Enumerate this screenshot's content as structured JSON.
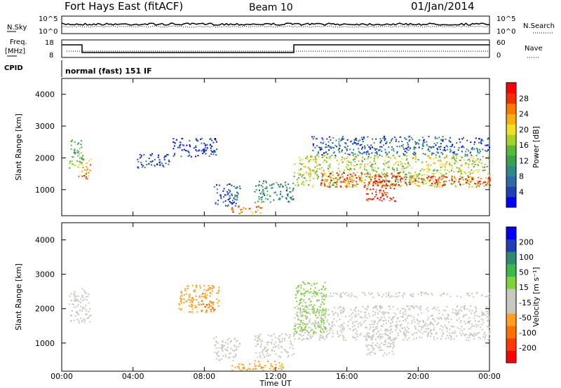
{
  "header": {
    "station": "Fort Hays East (fitACF)",
    "beam": "Beam 10",
    "date": "01/Jan/2014"
  },
  "ancillary": {
    "nsky_label": "N.Sky",
    "nsky_ticks": [
      "10^5",
      "10^0"
    ],
    "nsearch_label": "N.Search",
    "nsearch_ticks": [
      "10^5",
      "10^0"
    ],
    "freq_label": "Freq.",
    "freq_unit": "[MHz]",
    "freq_ticks": [
      "18",
      "8"
    ],
    "nave_label": "Nave",
    "nave_ticks": [
      "60",
      "0"
    ],
    "cpid_label": "CPID",
    "cpid_value": "normal (fast) 151 IF"
  },
  "chart_data": [
    {
      "type": "heatmap",
      "name": "power",
      "ylabel": "Slant Range [km]",
      "yticks": [
        "4000",
        "3000",
        "2000",
        "1000"
      ],
      "ylim": [
        180,
        4500
      ],
      "colorbar_label": "Power [dB]",
      "colorbar_ticks": [
        "28",
        "24",
        "20",
        "16",
        "12",
        "8",
        "4"
      ],
      "colorbar_colors": [
        "#0000ff",
        "#1f3fb4",
        "#2c6aa8",
        "#2e8a8a",
        "#3aa050",
        "#58b83a",
        "#a8d02a",
        "#f0e020",
        "#f8b010",
        "#f87a00",
        "#f03000",
        "#ff0000"
      ],
      "regions": [
        {
          "x": [
            0.4,
            1.2
          ],
          "y": [
            1700,
            2600
          ],
          "level": 0.45
        },
        {
          "x": [
            0.9,
            1.6
          ],
          "y": [
            1350,
            2000
          ],
          "level": 0.75
        },
        {
          "x": [
            4.2,
            6.0
          ],
          "y": [
            1700,
            2150
          ],
          "level": 0.15
        },
        {
          "x": [
            6.2,
            8.7
          ],
          "y": [
            2050,
            2650
          ],
          "level": 0.12
        },
        {
          "x": [
            8.5,
            10.0
          ],
          "y": [
            500,
            1200
          ],
          "level": 0.18
        },
        {
          "x": [
            9.5,
            11.2
          ],
          "y": [
            250,
            500
          ],
          "level": 0.8
        },
        {
          "x": [
            10.8,
            13.0
          ],
          "y": [
            600,
            1300
          ],
          "level": 0.3
        },
        {
          "x": [
            13.0,
            24.0
          ],
          "y": [
            1100,
            2100
          ],
          "level": 0.55
        },
        {
          "x": [
            14.5,
            19.0
          ],
          "y": [
            1100,
            1550
          ],
          "level": 0.85
        },
        {
          "x": [
            17.0,
            18.7
          ],
          "y": [
            650,
            1300
          ],
          "level": 0.9
        },
        {
          "x": [
            18.8,
            24.0
          ],
          "y": [
            1150,
            1450
          ],
          "level": 0.88
        },
        {
          "x": [
            14.0,
            24.0
          ],
          "y": [
            2100,
            2700
          ],
          "level": 0.2
        }
      ]
    },
    {
      "type": "heatmap",
      "name": "velocity",
      "xlabel": "Time UT",
      "xticks": [
        "00:00",
        "04:00",
        "08:00",
        "12:00",
        "16:00",
        "20:00",
        "00:00"
      ],
      "xlim": [
        0,
        24
      ],
      "ylabel": "Slant Range [km]",
      "yticks": [
        "4000",
        "3000",
        "2000",
        "1000"
      ],
      "ylim": [
        180,
        4500
      ],
      "colorbar_label": "Velocity [m s⁻¹]",
      "colorbar_ticks": [
        "200",
        "100",
        "50",
        "15",
        "-15",
        "-50",
        "-100",
        "-200"
      ],
      "colorbar_colors": [
        "#ff0000",
        "#ff3a00",
        "#ff7000",
        "#ffa020",
        "#c8c8c0",
        "#c8c8c0",
        "#80d040",
        "#3cb848",
        "#2e8a70",
        "#1f3fb4",
        "#0000ff"
      ],
      "regions": [
        {
          "x": [
            0.4,
            1.6
          ],
          "y": [
            1600,
            2600
          ],
          "color": "#c8c8c0"
        },
        {
          "x": [
            6.5,
            8.8
          ],
          "y": [
            1900,
            2700
          ],
          "color": "#ffa020"
        },
        {
          "x": [
            7.8,
            8.6
          ],
          "y": [
            1950,
            2250
          ],
          "color": "#ff7000"
        },
        {
          "x": [
            8.5,
            10.0
          ],
          "y": [
            500,
            1200
          ],
          "color": "#c8c8c0"
        },
        {
          "x": [
            9.5,
            12.5
          ],
          "y": [
            200,
            500
          ],
          "color": "#ffa020"
        },
        {
          "x": [
            10.8,
            13.0
          ],
          "y": [
            600,
            1300
          ],
          "color": "#c8c8c0"
        },
        {
          "x": [
            13.0,
            24.0
          ],
          "y": [
            1100,
            2100
          ],
          "color": "#c8c8c0"
        },
        {
          "x": [
            17.0,
            18.7
          ],
          "y": [
            650,
            1300
          ],
          "color": "#c8c8c0"
        },
        {
          "x": [
            13.0,
            14.8
          ],
          "y": [
            1300,
            2800
          ],
          "color": "#80d040"
        },
        {
          "x": [
            14.0,
            24.0
          ],
          "y": [
            2350,
            2500
          ],
          "color": "#c8c8c0"
        }
      ]
    }
  ]
}
